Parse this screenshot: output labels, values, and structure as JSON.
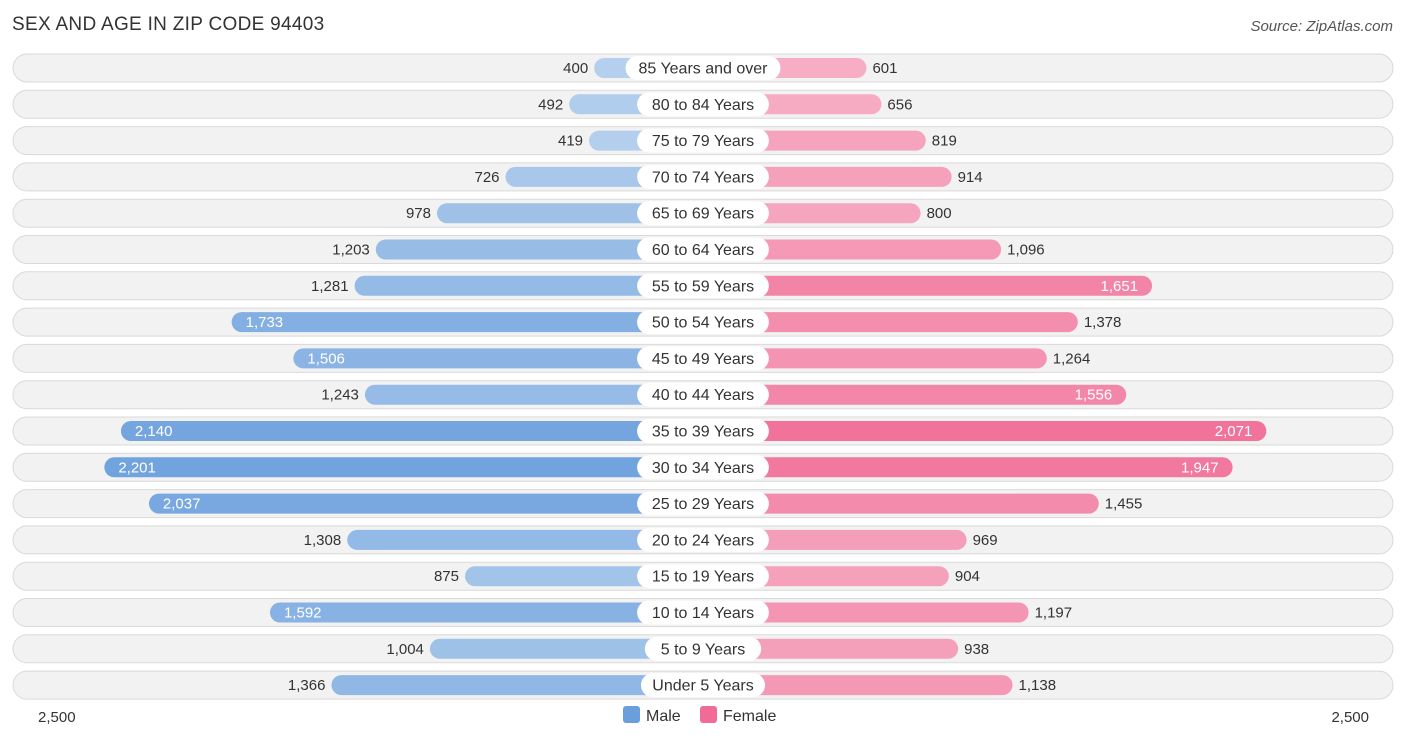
{
  "chart_data": {
    "type": "bar",
    "orientation": "horizontal-diverging",
    "title": "SEX AND AGE IN ZIP CODE 94403",
    "source": "Source: ZipAtlas.com",
    "categories": [
      "85 Years and over",
      "80 to 84 Years",
      "75 to 79 Years",
      "70 to 74 Years",
      "65 to 69 Years",
      "60 to 64 Years",
      "55 to 59 Years",
      "50 to 54 Years",
      "45 to 49 Years",
      "40 to 44 Years",
      "35 to 39 Years",
      "30 to 34 Years",
      "25 to 29 Years",
      "20 to 24 Years",
      "15 to 19 Years",
      "10 to 14 Years",
      "5 to 9 Years",
      "Under 5 Years"
    ],
    "series": [
      {
        "name": "Male",
        "color": "#6a9fdc",
        "values": [
          400,
          492,
          419,
          726,
          978,
          1203,
          1281,
          1733,
          1506,
          1243,
          2140,
          2201,
          2037,
          1308,
          875,
          1592,
          1004,
          1366
        ]
      },
      {
        "name": "Female",
        "color": "#f06c96",
        "values": [
          601,
          656,
          819,
          914,
          800,
          1096,
          1651,
          1378,
          1264,
          1556,
          2071,
          1947,
          1455,
          969,
          904,
          1197,
          938,
          1138
        ]
      }
    ],
    "axis_max": 2500,
    "axis_left_label": "2,500",
    "axis_right_label": "2,500",
    "legend": [
      {
        "name": "Male",
        "color": "#6a9fdc"
      },
      {
        "name": "Female",
        "color": "#f06c96"
      }
    ]
  }
}
